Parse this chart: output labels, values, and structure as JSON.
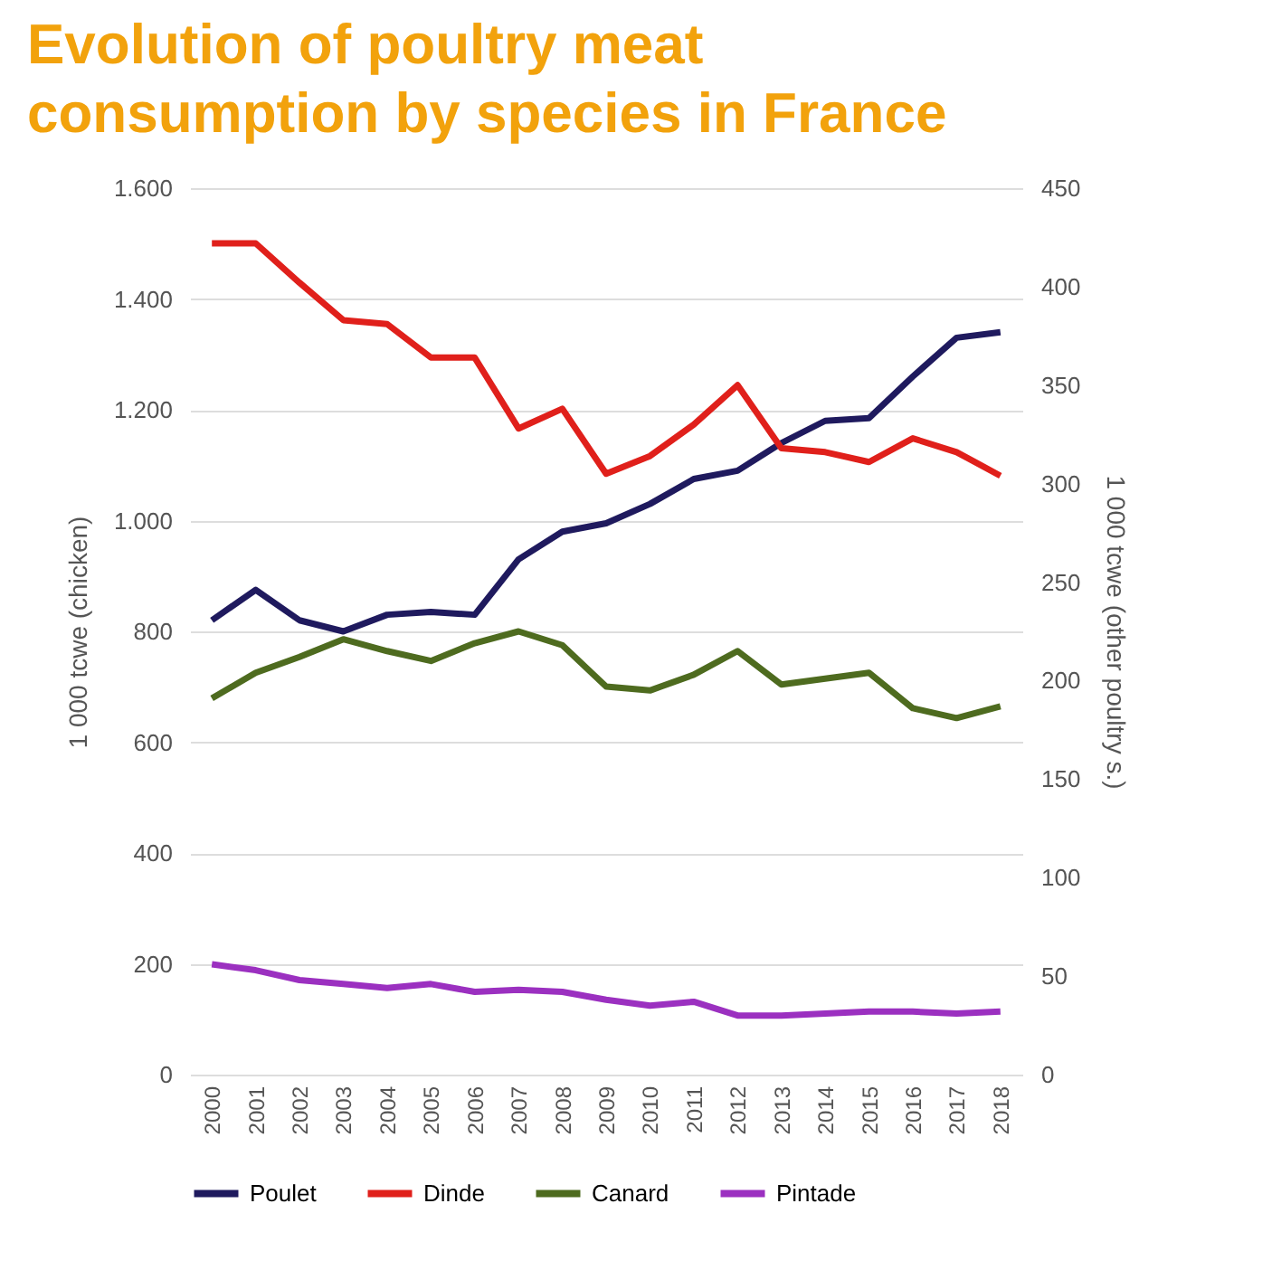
{
  "chart_data": {
    "type": "line",
    "title": "Evolution of poultry meat consumption by species in France",
    "ylabel": "1 000 tcwe (chicken)",
    "y2label": "1 000 tcwe (other poultry s.)",
    "categories": [
      "2000",
      "2001",
      "2002",
      "2003",
      "2004",
      "2005",
      "2006",
      "2007",
      "2008",
      "2009",
      "2010",
      "2011",
      "2012",
      "2013",
      "2014",
      "2015",
      "2016",
      "2017",
      "2018"
    ],
    "series": [
      {
        "name": "Poulet",
        "color": "#1f1a5e",
        "values": [
          820,
          875,
          820,
          800,
          830,
          835,
          830,
          930,
          980,
          995,
          1030,
          1075,
          1090,
          1140,
          1180,
          1185,
          1260,
          1330,
          1340
        ]
      },
      {
        "name": "Dinde",
        "color": "#e0201b",
        "axis": "y2",
        "values": [
          422,
          422,
          402,
          383,
          381,
          364,
          364,
          328,
          338,
          305,
          314,
          330,
          350,
          318,
          316,
          311,
          323,
          316,
          304
        ]
      },
      {
        "name": "Canard",
        "color": "#4e6b1f",
        "axis": "y2",
        "values": [
          191,
          204,
          212,
          221,
          215,
          210,
          219,
          225,
          218,
          197,
          195,
          203,
          215,
          198,
          201,
          204,
          186,
          181,
          187
        ]
      },
      {
        "name": "Pintade",
        "color": "#9b30c0",
        "axis": "y2",
        "values": [
          56,
          53,
          48,
          46,
          44,
          46,
          42,
          43,
          42,
          38,
          35,
          37,
          30,
          30,
          31,
          32,
          32,
          31,
          32
        ]
      }
    ],
    "ylim": [
      0,
      1600
    ],
    "yticks": [
      0,
      {
        "value": 200,
        "label": "200"
      },
      400,
      600,
      800,
      {
        "value": 1000,
        "label": "1.000"
      },
      {
        "value": 1200,
        "label": "1.200"
      },
      {
        "value": 1400,
        "label": "1.400"
      },
      {
        "value": 1600,
        "label": "1.600"
      }
    ],
    "y2lim": [
      0,
      450
    ],
    "y2ticks": [
      0,
      50,
      100,
      150,
      200,
      250,
      300,
      350,
      400,
      450
    ],
    "grid": "y",
    "legend": "bottom",
    "marker": "none",
    "line_style": "solid"
  }
}
